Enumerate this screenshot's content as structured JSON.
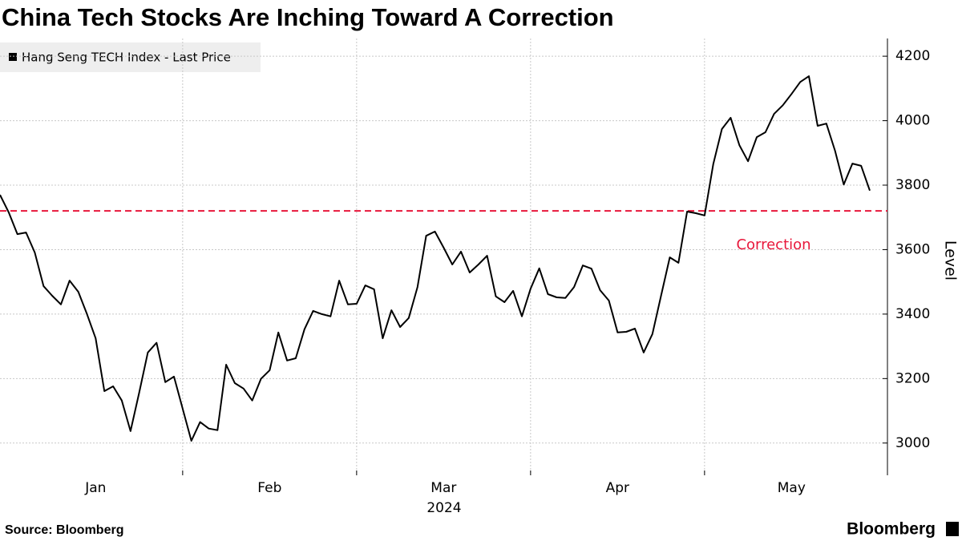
{
  "chart_data": {
    "type": "line",
    "title": "China Tech Stocks Are Inching Toward A Correction",
    "source": "Source: Bloomberg",
    "brand": "Bloomberg",
    "ylabel": "Level",
    "xlabel": "2024",
    "categories": [
      null,
      null,
      null,
      null,
      null,
      null,
      null,
      null,
      null,
      null,
      null,
      "Jan",
      null,
      null,
      null,
      null,
      null,
      null,
      null,
      null,
      null,
      null,
      null,
      null,
      null,
      null,
      null,
      null,
      null,
      null,
      null,
      "Feb",
      null,
      null,
      null,
      null,
      null,
      null,
      null,
      null,
      null,
      null,
      null,
      null,
      null,
      null,
      null,
      null,
      null,
      null,
      null,
      "Mar",
      null,
      null,
      null,
      null,
      null,
      null,
      null,
      null,
      null,
      null,
      null,
      null,
      null,
      null,
      null,
      null,
      null,
      null,
      null,
      "Apr",
      null,
      null,
      null,
      null,
      null,
      null,
      null,
      null,
      null,
      null,
      null,
      null,
      null,
      null,
      null,
      null,
      null,
      null,
      null,
      "May",
      null,
      null,
      null,
      null,
      null,
      null,
      null,
      null,
      null
    ],
    "series": [
      {
        "name": "Hang Seng TECH Index - Last Price",
        "color": "#000000",
        "values": [
          3770,
          3716,
          3648,
          3653,
          3591,
          3487,
          3457,
          3430,
          3504,
          3469,
          3400,
          3325,
          3161,
          3176,
          3132,
          3037,
          3156,
          3281,
          3311,
          3189,
          3206,
          3107,
          3007,
          3065,
          3045,
          3040,
          3243,
          3186,
          3169,
          3132,
          3199,
          3226,
          3343,
          3256,
          3263,
          3353,
          3410,
          3400,
          3393,
          3504,
          3430,
          3432,
          3489,
          3477,
          3325,
          3412,
          3360,
          3388,
          3484,
          3643,
          3656,
          3606,
          3554,
          3594,
          3529,
          3554,
          3581,
          3455,
          3437,
          3472,
          3393,
          3479,
          3542,
          3462,
          3452,
          3450,
          3484,
          3551,
          3541,
          3474,
          3442,
          3343,
          3345,
          3355,
          3281,
          3338,
          3457,
          3576,
          3559,
          3718,
          3713,
          3706,
          3865,
          3974,
          4009,
          3924,
          3874,
          3949,
          3964,
          4021,
          4048,
          4083,
          4120,
          4138,
          3984,
          3991,
          3907,
          3802,
          3867,
          3860,
          3783
        ]
      }
    ],
    "reference_line": {
      "value": 3720,
      "label": "Correction",
      "color": "#e8173b"
    },
    "ylim": [
      2900,
      4255
    ],
    "yticks": [
      3000,
      3200,
      3400,
      3600,
      3800,
      4000,
      4200
    ],
    "grid": true
  }
}
